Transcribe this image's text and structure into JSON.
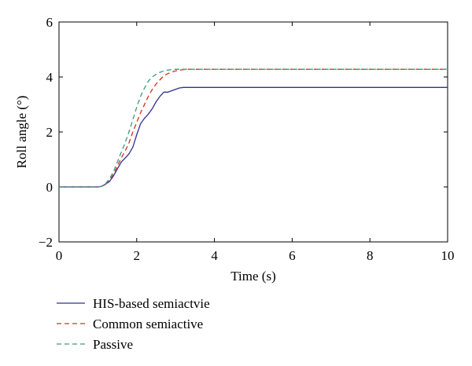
{
  "chart_data": {
    "type": "line",
    "title": "",
    "xlabel": "Time (s)",
    "ylabel": "Roll angle (°)",
    "xlim": [
      0,
      10
    ],
    "ylim": [
      -2,
      6
    ],
    "xticks": [
      "0",
      "2",
      "4",
      "6",
      "8",
      "10"
    ],
    "yticks": [
      "−2",
      "0",
      "2",
      "4",
      "6"
    ],
    "grid": false,
    "legend_position": "bottom-left, outside plot",
    "series": [
      {
        "name": "HIS-based semiactvie",
        "color": "#2e3192",
        "dash": "solid",
        "x": [
          0,
          1.0,
          1.1,
          1.2,
          1.3,
          1.4,
          1.5,
          1.6,
          1.7,
          1.8,
          1.9,
          2.0,
          2.1,
          2.2,
          2.3,
          2.4,
          2.5,
          2.6,
          2.7,
          2.8,
          2.9,
          3.0,
          3.1,
          3.2,
          4.0,
          6.0,
          8.0,
          10.0
        ],
        "y": [
          0,
          0,
          0.02,
          0.1,
          0.2,
          0.4,
          0.65,
          0.9,
          1.05,
          1.2,
          1.45,
          1.9,
          2.3,
          2.5,
          2.65,
          2.85,
          3.1,
          3.3,
          3.45,
          3.45,
          3.5,
          3.55,
          3.6,
          3.62,
          3.62,
          3.62,
          3.62,
          3.62
        ]
      },
      {
        "name": "Common semiactive",
        "color": "#d4301c",
        "dash": "dashed",
        "x": [
          0,
          1.0,
          1.1,
          1.2,
          1.3,
          1.4,
          1.5,
          1.6,
          1.7,
          1.8,
          1.9,
          2.0,
          2.1,
          2.2,
          2.3,
          2.4,
          2.5,
          2.6,
          2.7,
          2.8,
          2.9,
          3.0,
          3.1,
          3.2,
          3.3,
          4.0,
          6.0,
          8.0,
          10.0
        ],
        "y": [
          0,
          0,
          0.02,
          0.1,
          0.25,
          0.45,
          0.75,
          1.05,
          1.3,
          1.6,
          2.0,
          2.35,
          2.7,
          3.0,
          3.3,
          3.55,
          3.75,
          3.9,
          4.05,
          4.12,
          4.18,
          4.22,
          4.25,
          4.27,
          4.28,
          4.28,
          4.28,
          4.28,
          4.28
        ]
      },
      {
        "name": "Passive",
        "color": "#3c9a7a",
        "dash": "dashed",
        "x": [
          0,
          1.0,
          1.1,
          1.2,
          1.3,
          1.4,
          1.5,
          1.6,
          1.7,
          1.8,
          1.9,
          2.0,
          2.1,
          2.2,
          2.3,
          2.4,
          2.5,
          2.6,
          2.7,
          2.8,
          2.9,
          3.0,
          3.1,
          4.0,
          6.0,
          8.0,
          10.0
        ],
        "y": [
          0,
          0,
          0.03,
          0.12,
          0.3,
          0.55,
          0.9,
          1.25,
          1.6,
          2.0,
          2.45,
          2.9,
          3.3,
          3.6,
          3.85,
          4.0,
          4.1,
          4.17,
          4.22,
          4.25,
          4.27,
          4.28,
          4.28,
          4.28,
          4.28,
          4.28,
          4.28
        ]
      }
    ]
  }
}
